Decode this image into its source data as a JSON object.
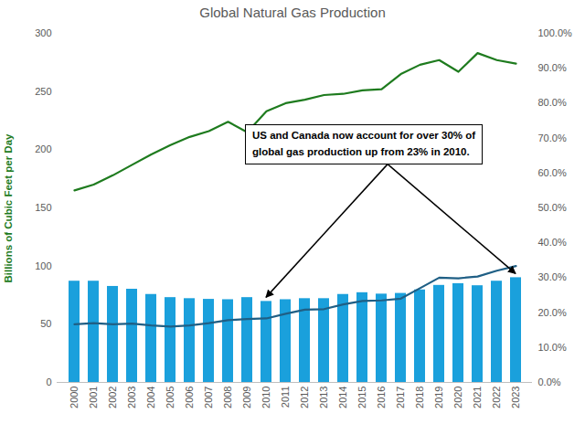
{
  "chart_data": {
    "type": "bar",
    "title": "Global Natural Gas Production",
    "y_label": "Billions of Cubic Feet per Day",
    "annotation": "US and Canada now account for over 30% of\nglobal gas production up from 23% in 2010.",
    "categories": [
      "2000",
      "2001",
      "2002",
      "2003",
      "2004",
      "2005",
      "2006",
      "2007",
      "2008",
      "2009",
      "2010",
      "2011",
      "2012",
      "2013",
      "2014",
      "2015",
      "2016",
      "2017",
      "2018",
      "2019",
      "2020",
      "2021",
      "2022",
      "2023"
    ],
    "ylim": [
      0,
      300
    ],
    "yticks": [
      0,
      50,
      100,
      150,
      200,
      250,
      300
    ],
    "y2lim": [
      0,
      100
    ],
    "y2ticks": [
      {
        "value": 0,
        "label": "0.0%"
      },
      {
        "value": 10,
        "label": "10.0%"
      },
      {
        "value": 20,
        "label": "20.0%"
      },
      {
        "value": 30,
        "label": "30.0%"
      },
      {
        "value": 40,
        "label": "40.0%"
      },
      {
        "value": 50,
        "label": "50.0%"
      },
      {
        "value": 60,
        "label": "60.0%"
      },
      {
        "value": 70,
        "label": "70.0%"
      },
      {
        "value": 80,
        "label": "80.0%"
      },
      {
        "value": 90,
        "label": "90.0%"
      },
      {
        "value": 100,
        "label": "100.0%"
      }
    ],
    "grid": false,
    "series": [
      {
        "type": "bar",
        "axis": "y2",
        "color": "#1aa0dc",
        "values": [
          29,
          29,
          27.5,
          26.7,
          25.2,
          24.3,
          24,
          23.8,
          23.7,
          24.3,
          23.2,
          23.7,
          24,
          24,
          25.2,
          25.7,
          25.3,
          25.5,
          26.5,
          27.8,
          28.3,
          27.7,
          29,
          30
        ]
      },
      {
        "type": "line",
        "color": "#1e7b1e",
        "values": [
          165,
          170,
          178,
          187,
          196,
          204,
          211,
          216,
          224,
          215,
          233,
          240,
          243,
          247,
          248,
          251,
          252,
          265,
          273,
          277,
          267,
          283,
          277,
          274
        ]
      },
      {
        "type": "line",
        "color": "#1f5f85",
        "values": [
          50,
          51,
          50,
          50.5,
          49,
          48,
          49,
          51,
          53.5,
          54.5,
          55,
          59,
          62.5,
          63,
          67,
          70,
          70.5,
          72,
          81,
          90,
          89.5,
          91,
          96,
          100
        ]
      }
    ]
  }
}
